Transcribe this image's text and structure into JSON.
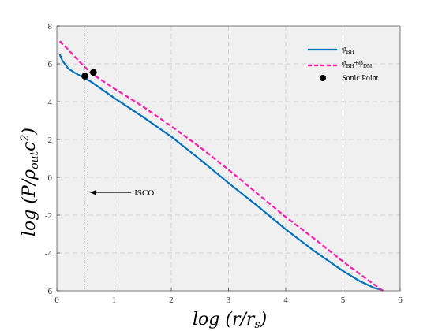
{
  "chart_data": {
    "type": "line",
    "xlabel": "log (r/r_s)",
    "ylabel": "log (P/ρ_out c²)",
    "xlim": [
      0,
      6
    ],
    "ylim": [
      -6,
      8
    ],
    "x_ticks": [
      "0",
      "1",
      "2",
      "3",
      "4",
      "5",
      "6"
    ],
    "y_ticks": [
      "-6",
      "-4",
      "-2",
      "0",
      "2",
      "4",
      "6",
      "8"
    ],
    "grid": true,
    "legend_position": "top-right",
    "background_color": "#f0f0f0",
    "series": [
      {
        "name": "φ_BH",
        "color": "#0072bd",
        "style": "solid",
        "x": [
          0.05,
          0.1,
          0.2,
          0.3,
          0.45,
          0.6,
          1.0,
          1.5,
          2.0,
          2.5,
          3.0,
          3.5,
          4.0,
          4.5,
          5.0,
          5.3,
          5.55,
          5.68
        ],
        "y": [
          6.5,
          6.15,
          5.75,
          5.55,
          5.3,
          5.05,
          4.2,
          3.2,
          2.15,
          0.95,
          -0.3,
          -1.5,
          -2.75,
          -3.9,
          -4.95,
          -5.5,
          -5.85,
          -5.95
        ]
      },
      {
        "name": "φ_BH+φ_DM",
        "color": "#ff1aad",
        "style": "dashed",
        "x": [
          0.05,
          0.2,
          0.4,
          0.6,
          1.0,
          1.5,
          2.0,
          2.5,
          3.0,
          3.5,
          4.0,
          4.5,
          5.0,
          5.4,
          5.7
        ],
        "y": [
          7.2,
          6.75,
          6.1,
          5.5,
          4.7,
          3.75,
          2.7,
          1.6,
          0.4,
          -0.85,
          -2.1,
          -3.25,
          -4.45,
          -5.35,
          -6.0
        ]
      }
    ],
    "sonic_points": {
      "name": "Sonic Point",
      "color": "#000000",
      "points": [
        [
          0.49,
          5.35
        ],
        [
          0.64,
          5.55
        ]
      ]
    },
    "isco": {
      "label": "ISCO",
      "x": 0.48,
      "arrow_from": [
        1.3,
        -0.8
      ],
      "arrow_to": [
        0.58,
        -0.8
      ]
    }
  },
  "text": {
    "x_axis_label": "log (r/r",
    "x_axis_sub": "s",
    "x_axis_close": ")",
    "y_axis_label": "log (P/ρ",
    "y_axis_sub": "out",
    "y_axis_c": "c",
    "y_axis_sup": "2",
    "y_axis_close": ")",
    "legend_bh": "φ",
    "legend_bh_sub": "BH",
    "legend_dm_a": "φ",
    "legend_dm_sub_a": "BH",
    "legend_dm_plus": "+φ",
    "legend_dm_sub_b": "DM",
    "legend_sonic": "Sonic Point",
    "isco_label": "ISCO"
  }
}
